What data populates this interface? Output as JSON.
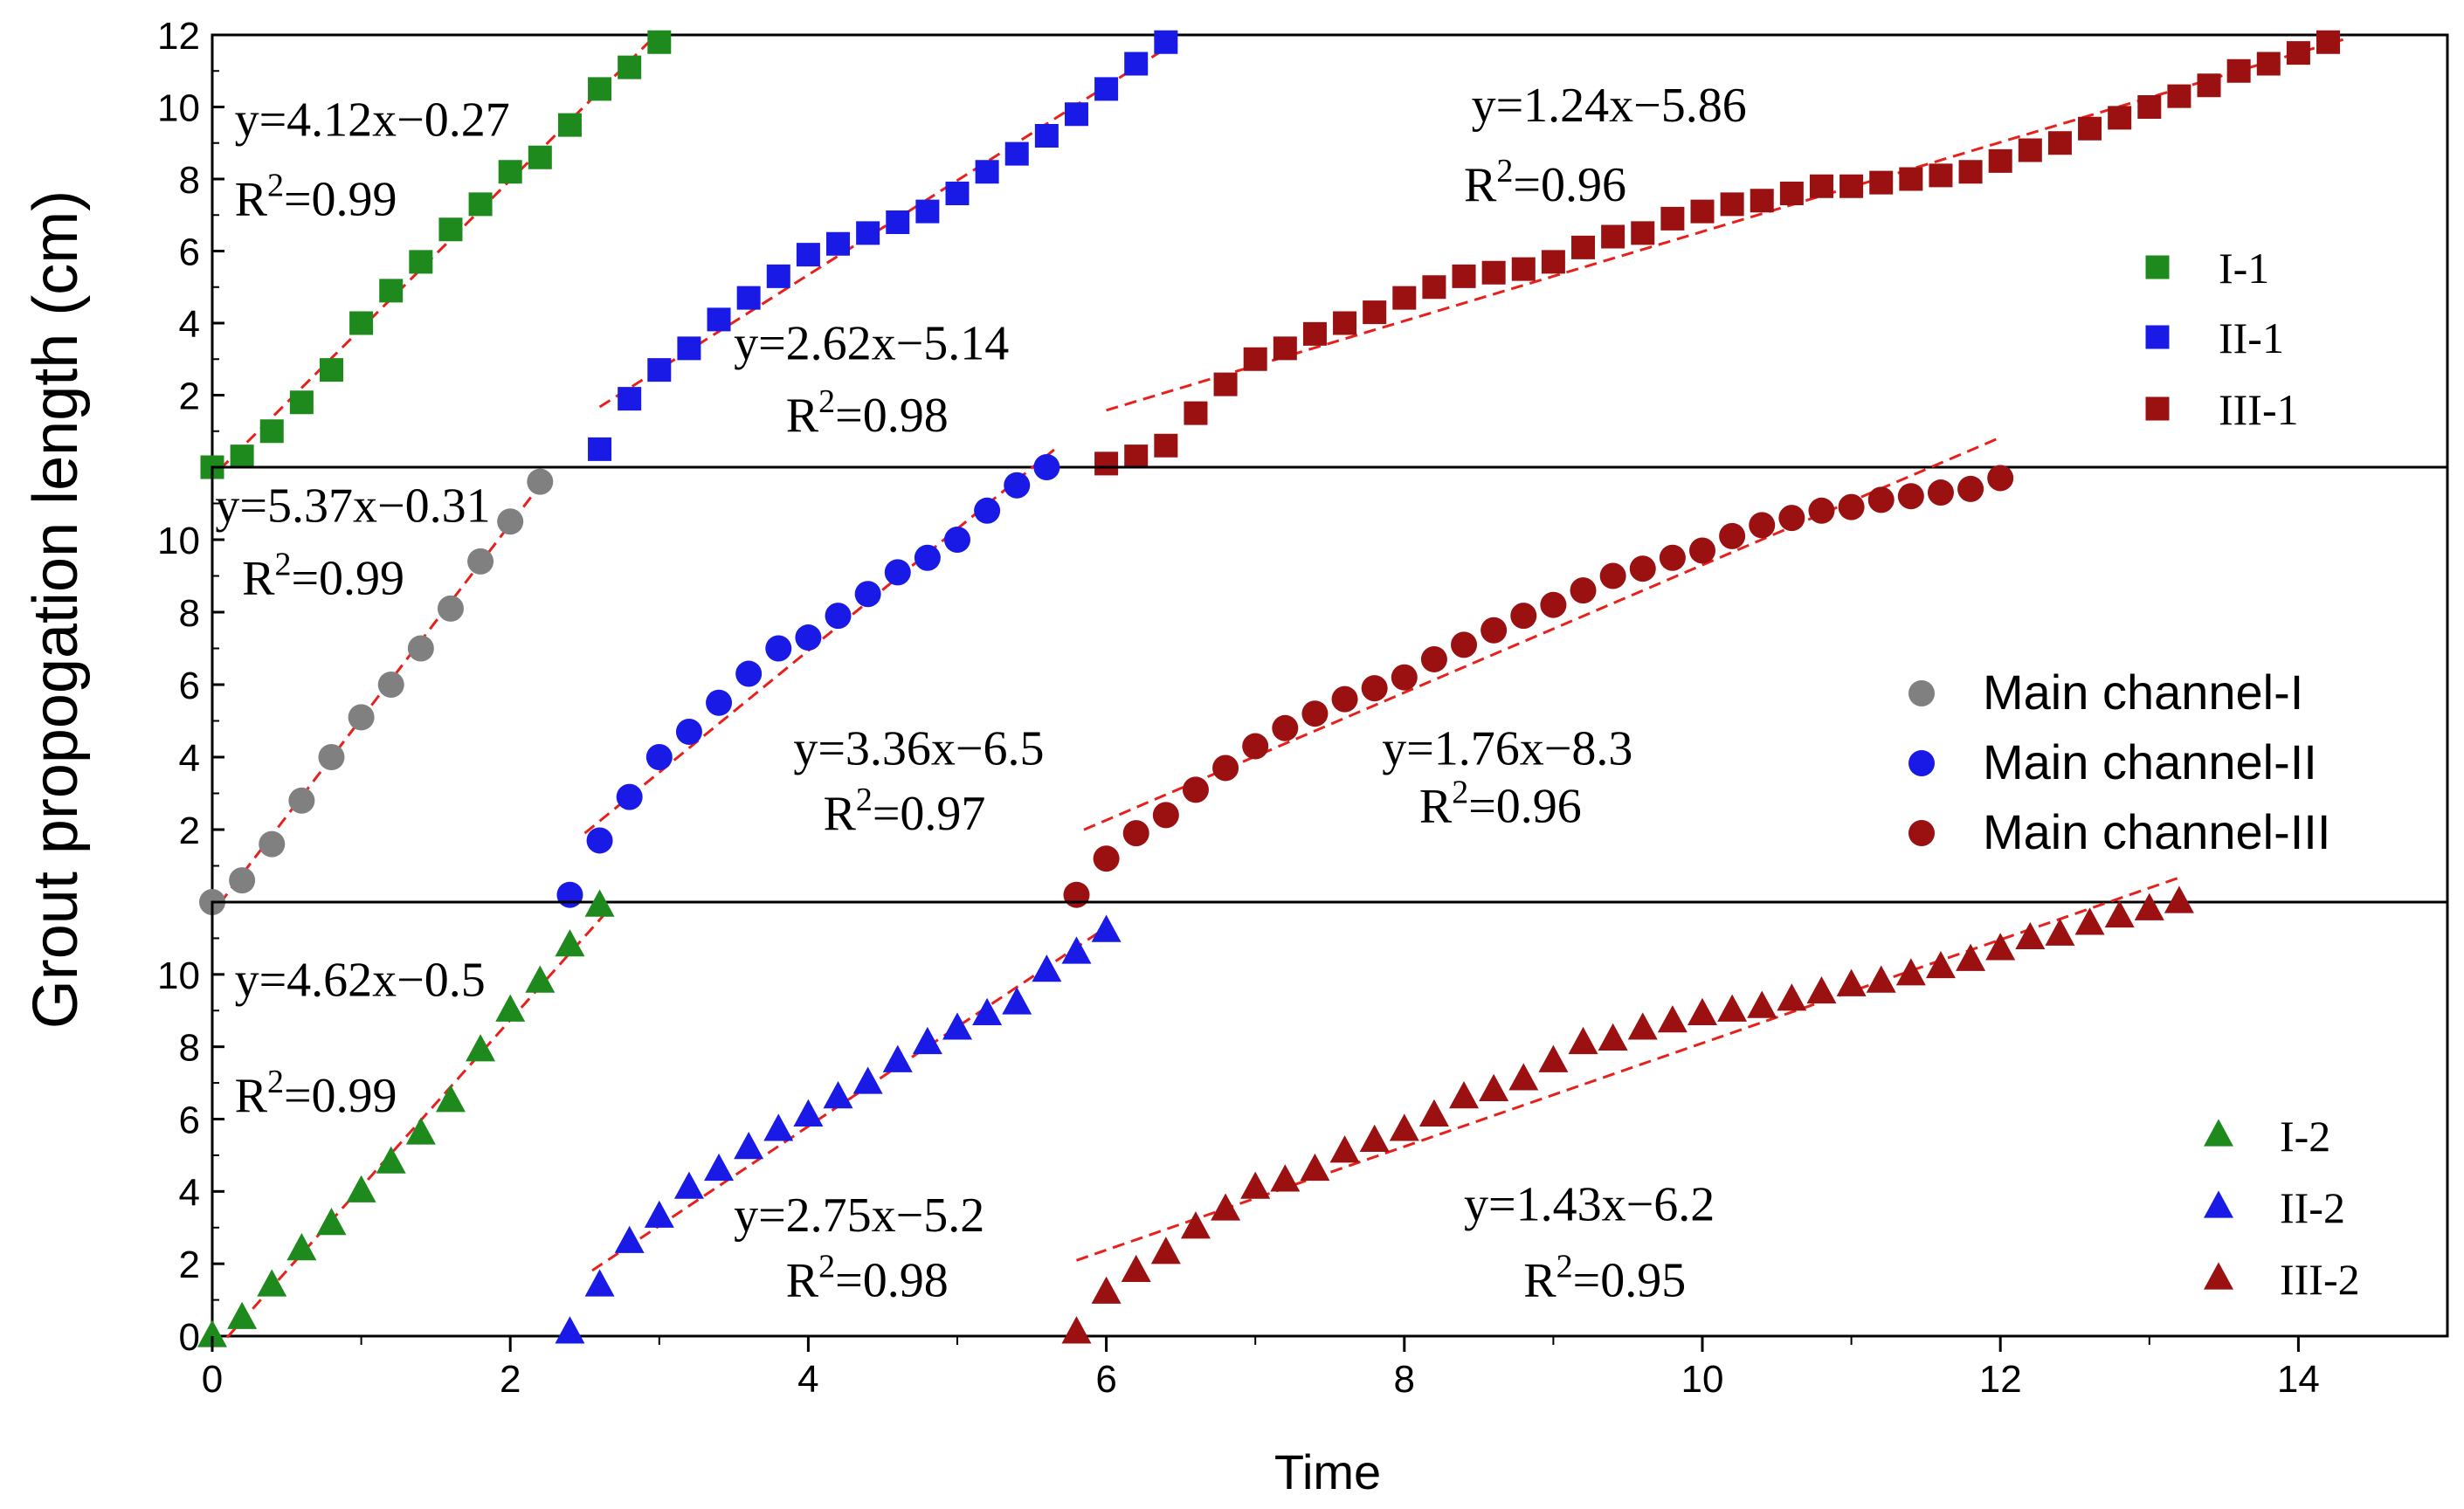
{
  "chart_data": {
    "type": "scatter",
    "xlabel": "Time",
    "ylabel": "Grout propogation length (cm)",
    "xlim": [
      0,
      15
    ],
    "x_ticks": [
      "0",
      "2",
      "4",
      "6",
      "8",
      "10",
      "12",
      "14"
    ],
    "panels": [
      {
        "id": "top",
        "marker": "square",
        "ylim": [
          0,
          12
        ],
        "y_ticks": [
          "2",
          "4",
          "6",
          "8",
          "10",
          "12"
        ],
        "series": [
          {
            "name": "I-1",
            "color": "#1e8a1e",
            "x": [
              0,
              0.2,
              0.4,
              0.6,
              0.8,
              1.0,
              1.2,
              1.4,
              1.6,
              1.8,
              2.0,
              2.2,
              2.4,
              2.6,
              2.8,
              3.0
            ],
            "y": [
              0,
              0.3,
              1.0,
              1.8,
              2.7,
              4.0,
              4.9,
              5.7,
              6.6,
              7.3,
              8.2,
              8.6,
              9.5,
              10.5,
              11.1,
              11.8
            ],
            "fit": {
              "slope": 4.12,
              "intercept": -0.27,
              "x_range": [
                0.05,
                3.0
              ]
            }
          },
          {
            "name": "II-1",
            "color": "#1a1ae6",
            "x": [
              2.6,
              2.8,
              3.0,
              3.2,
              3.4,
              3.6,
              3.8,
              4.0,
              4.2,
              4.4,
              4.6,
              4.8,
              5.0,
              5.2,
              5.4,
              5.6,
              5.8,
              6.0,
              6.2,
              6.4
            ],
            "y": [
              0.5,
              1.9,
              2.7,
              3.3,
              4.1,
              4.7,
              5.3,
              5.9,
              6.2,
              6.5,
              6.8,
              7.1,
              7.6,
              8.2,
              8.7,
              9.2,
              9.8,
              10.5,
              11.2,
              11.8
            ],
            "fit": {
              "slope": 2.62,
              "intercept": -5.14,
              "x_range": [
                2.6,
                6.45
              ]
            }
          },
          {
            "name": "III-1",
            "color": "#9b1010",
            "x": [
              6.0,
              6.2,
              6.4,
              6.6,
              6.8,
              7.0,
              7.2,
              7.4,
              7.6,
              7.8,
              8.0,
              8.2,
              8.4,
              8.6,
              8.8,
              9.0,
              9.2,
              9.4,
              9.6,
              9.8,
              10.0,
              10.2,
              10.4,
              10.6,
              10.8,
              11.0,
              11.2,
              11.4,
              11.6,
              11.8,
              12.0,
              12.2,
              12.4,
              12.6,
              12.8,
              13.0,
              13.2,
              13.4,
              13.6,
              13.8,
              14.0,
              14.2
            ],
            "y": [
              0.1,
              0.3,
              0.6,
              1.5,
              2.3,
              3.0,
              3.3,
              3.7,
              4.0,
              4.3,
              4.7,
              5.0,
              5.3,
              5.4,
              5.5,
              5.7,
              6.1,
              6.4,
              6.5,
              6.9,
              7.1,
              7.3,
              7.4,
              7.6,
              7.8,
              7.8,
              7.9,
              8.0,
              8.1,
              8.2,
              8.5,
              8.8,
              9.0,
              9.4,
              9.7,
              10.0,
              10.3,
              10.6,
              11.0,
              11.2,
              11.5,
              11.8
            ]
          }
        ],
        "fit_lines": [
          {
            "slope": 1.24,
            "intercept": -5.86,
            "x_range": [
              6.0,
              14.3
            ]
          }
        ],
        "annotations": [
          {
            "text": "y=4.12x−0.27",
            "x": 0.15,
            "y": 9.2
          },
          {
            "text": "R",
            "sup": "2",
            "rest": "=0.99",
            "x": 0.15,
            "y": 7.0
          },
          {
            "text": "y=2.62x−5.14",
            "x": 3.5,
            "y": 3.0
          },
          {
            "text": "R",
            "sup": "2",
            "rest": "=0.98",
            "x": 3.85,
            "y": 1.0
          },
          {
            "text": "y=1.24x−5.86",
            "x": 8.45,
            "y": 9.6
          },
          {
            "text": "R",
            "sup": "2",
            "rest": "=0.96",
            "x": 8.4,
            "y": 7.4
          }
        ],
        "legend": {
          "position": "right",
          "items": [
            "I-1",
            "II-1",
            "III-1"
          ]
        }
      },
      {
        "id": "middle",
        "marker": "circle",
        "ylim": [
          0,
          12
        ],
        "y_ticks": [
          "2",
          "4",
          "6",
          "8",
          "10"
        ],
        "series": [
          {
            "name": "Main channel-I",
            "color": "#808080",
            "x": [
              0,
              0.2,
              0.4,
              0.6,
              0.8,
              1.0,
              1.2,
              1.4,
              1.6,
              1.8,
              2.0,
              2.2
            ],
            "y": [
              0,
              0.6,
              1.6,
              2.8,
              4.0,
              5.1,
              6.0,
              7.0,
              8.1,
              9.4,
              10.5,
              11.6
            ],
            "fit": {
              "slope": 5.37,
              "intercept": -0.31,
              "x_range": [
                0.05,
                2.2
              ]
            }
          },
          {
            "name": "Main channel-II",
            "color": "#1a1ae6",
            "x": [
              2.4,
              2.6,
              2.8,
              3.0,
              3.2,
              3.4,
              3.6,
              3.8,
              4.0,
              4.2,
              4.4,
              4.6,
              4.8,
              5.0,
              5.2,
              5.4,
              5.6
            ],
            "y": [
              0.2,
              1.7,
              2.9,
              4.0,
              4.7,
              5.5,
              6.3,
              7.0,
              7.3,
              7.9,
              8.5,
              9.1,
              9.5,
              10.0,
              10.8,
              11.5,
              12.0
            ],
            "fit": {
              "slope": 3.36,
              "intercept": -6.5,
              "x_range": [
                2.5,
                5.65
              ]
            }
          },
          {
            "name": "Main channel-III",
            "color": "#9b1010",
            "x": [
              5.8,
              6.0,
              6.2,
              6.4,
              6.6,
              6.8,
              7.0,
              7.2,
              7.4,
              7.6,
              7.8,
              8.0,
              8.2,
              8.4,
              8.6,
              8.8,
              9.0,
              9.2,
              9.4,
              9.6,
              9.8,
              10.0,
              10.2,
              10.4,
              10.6,
              10.8,
              11.0,
              11.2,
              11.4,
              11.6,
              11.8,
              12.0
            ],
            "y": [
              0.2,
              1.2,
              1.9,
              2.4,
              3.1,
              3.7,
              4.3,
              4.8,
              5.2,
              5.6,
              5.9,
              6.2,
              6.7,
              7.1,
              7.5,
              7.9,
              8.2,
              8.6,
              9.0,
              9.2,
              9.5,
              9.7,
              10.1,
              10.4,
              10.6,
              10.8,
              10.9,
              11.1,
              11.2,
              11.3,
              11.4,
              11.7
            ],
            "fit": {
              "slope": 1.76,
              "intercept": -8.3,
              "x_range": [
                5.85,
                12.0
              ]
            }
          }
        ],
        "annotations": [
          {
            "text": "y=5.37x−0.31",
            "x": 0.02,
            "y": 10.5
          },
          {
            "text": "R",
            "sup": "2",
            "rest": "=0.99",
            "x": 0.2,
            "y": 8.5
          },
          {
            "text": "y=3.36x−6.5",
            "x": 3.9,
            "y": 3.8
          },
          {
            "text": "R",
            "sup": "2",
            "rest": "=0.97",
            "x": 4.1,
            "y": 2.0
          },
          {
            "text": "y=1.76x−8.3",
            "x": 7.85,
            "y": 3.8
          },
          {
            "text": "R",
            "sup": "2",
            "rest": "=0.96",
            "x": 8.1,
            "y": 2.2
          }
        ],
        "legend": {
          "position": "right",
          "items": [
            "Main channel-I",
            "Main channel-II",
            "Main channel-III"
          ]
        }
      },
      {
        "id": "bottom",
        "marker": "triangle",
        "ylim": [
          0,
          12
        ],
        "y_ticks": [
          "0",
          "2",
          "4",
          "6",
          "8",
          "10"
        ],
        "series": [
          {
            "name": "I-2",
            "color": "#1e8a1e",
            "x": [
              0,
              0.2,
              0.4,
              0.6,
              0.8,
              1.0,
              1.2,
              1.4,
              1.6,
              1.8,
              2.0,
              2.2,
              2.4,
              2.6
            ],
            "y": [
              0,
              0.5,
              1.4,
              2.4,
              3.1,
              4.0,
              4.8,
              5.6,
              6.5,
              7.9,
              9.0,
              9.8,
              10.8,
              11.9
            ],
            "fit": {
              "slope": 4.62,
              "intercept": -0.5,
              "x_range": [
                0.1,
                2.65
              ]
            }
          },
          {
            "name": "II-2",
            "color": "#1a1ae6",
            "x": [
              2.4,
              2.6,
              2.8,
              3.0,
              3.2,
              3.4,
              3.6,
              3.8,
              4.0,
              4.2,
              4.4,
              4.6,
              4.8,
              5.0,
              5.2,
              5.4,
              5.6,
              5.8,
              6.0
            ],
            "y": [
              0.1,
              1.4,
              2.6,
              3.3,
              4.1,
              4.6,
              5.2,
              5.7,
              6.1,
              6.6,
              7.0,
              7.6,
              8.1,
              8.5,
              8.9,
              9.2,
              10.1,
              10.6,
              11.2
            ],
            "fit": {
              "slope": 2.75,
              "intercept": -5.2,
              "x_range": [
                2.55,
                6.0
              ]
            }
          },
          {
            "name": "III-2",
            "color": "#9b1010",
            "x": [
              5.8,
              6.0,
              6.2,
              6.4,
              6.6,
              6.8,
              7.0,
              7.2,
              7.4,
              7.6,
              7.8,
              8.0,
              8.2,
              8.4,
              8.6,
              8.8,
              9.0,
              9.2,
              9.4,
              9.6,
              9.8,
              10.0,
              10.2,
              10.4,
              10.6,
              10.8,
              11.0,
              11.2,
              11.4,
              11.6,
              11.8,
              12.0,
              12.2,
              12.4,
              12.6,
              12.8,
              13.0,
              13.2
            ],
            "y": [
              0.1,
              1.2,
              1.8,
              2.3,
              3.0,
              3.5,
              4.1,
              4.3,
              4.6,
              5.1,
              5.4,
              5.7,
              6.1,
              6.6,
              6.8,
              7.1,
              7.6,
              8.1,
              8.2,
              8.5,
              8.7,
              8.9,
              9.0,
              9.1,
              9.3,
              9.5,
              9.7,
              9.8,
              10.0,
              10.2,
              10.4,
              10.7,
              11.0,
              11.1,
              11.4,
              11.6,
              11.8,
              12.0
            ],
            "fit": {
              "slope": 1.43,
              "intercept": -6.2,
              "x_range": [
                5.8,
                13.2
              ]
            }
          }
        ],
        "annotations": [
          {
            "text": "y=4.62x−0.5",
            "x": 0.15,
            "y": 9.4
          },
          {
            "text": "R",
            "sup": "2",
            "rest": "=0.99",
            "x": 0.15,
            "y": 6.2
          },
          {
            "text": "y=2.75x−5.2",
            "x": 3.5,
            "y": 2.9
          },
          {
            "text": "R",
            "sup": "2",
            "rest": "=0.98",
            "x": 3.85,
            "y": 1.1
          },
          {
            "text": "y=1.43x−6.2",
            "x": 8.4,
            "y": 3.2
          },
          {
            "text": "R",
            "sup": "2",
            "rest": "=0.95",
            "x": 8.8,
            "y": 1.1
          }
        ],
        "legend": {
          "position": "right",
          "items": [
            "I-2",
            "II-2",
            "III-2"
          ]
        }
      }
    ]
  }
}
